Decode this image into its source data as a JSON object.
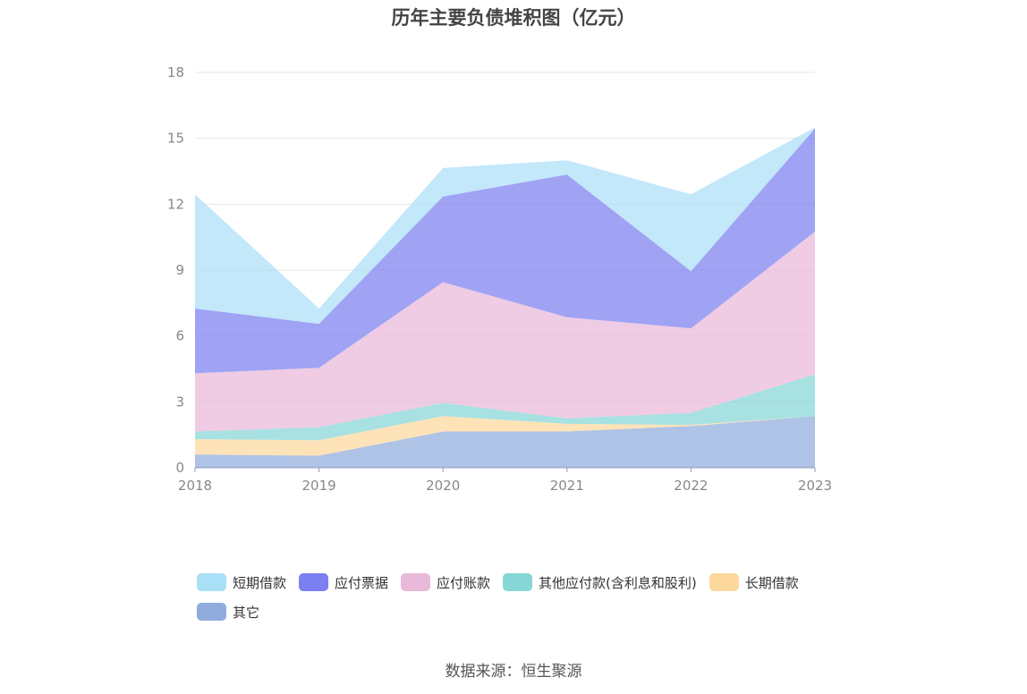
{
  "title": "历年主要负债堆积图（亿元）",
  "source": "数据来源：恒生聚源",
  "chart_data": {
    "type": "area",
    "stacked": true,
    "title": "历年主要负债堆积图（亿元）",
    "x": [
      "2018",
      "2019",
      "2020",
      "2021",
      "2022",
      "2023"
    ],
    "ylim": [
      0,
      18
    ],
    "yticks": [
      "0",
      "3",
      "6",
      "9",
      "12",
      "15",
      "18"
    ],
    "grid": true,
    "legend_position": "bottom",
    "series": [
      {
        "name": "短期借款",
        "color": "#aadff8",
        "values": [
          5.2,
          0.7,
          1.3,
          0.65,
          3.5,
          0.05
        ]
      },
      {
        "name": "应付票据",
        "color": "#7b7ff0",
        "values": [
          2.95,
          2.0,
          3.9,
          6.5,
          2.6,
          4.7
        ]
      },
      {
        "name": "应付账款",
        "color": "#e9b9d9",
        "values": [
          2.65,
          2.7,
          5.5,
          4.6,
          3.85,
          6.5
        ]
      },
      {
        "name": "其他应付款(含利息和股利)",
        "color": "#86d6d6",
        "values": [
          0.35,
          0.6,
          0.6,
          0.25,
          0.55,
          1.9
        ]
      },
      {
        "name": "长期借款",
        "color": "#fdd89d",
        "values": [
          0.7,
          0.7,
          0.7,
          0.35,
          0.05,
          0.0
        ]
      },
      {
        "name": "其它",
        "color": "#90acdd",
        "values": [
          0.6,
          0.55,
          1.65,
          1.65,
          1.9,
          2.35
        ]
      }
    ]
  }
}
